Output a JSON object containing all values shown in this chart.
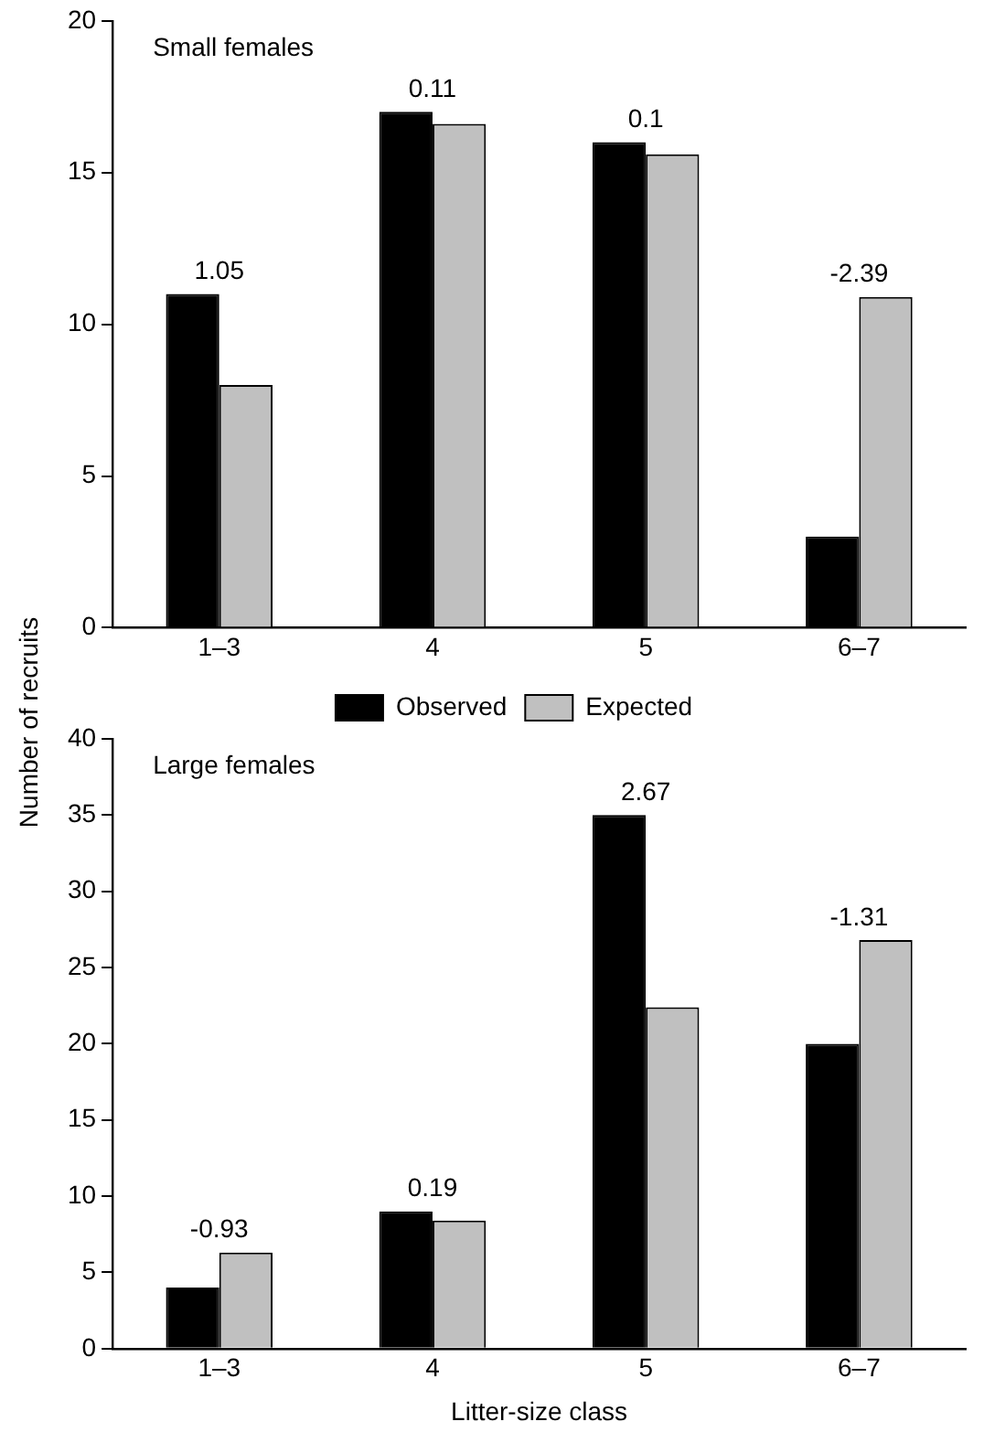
{
  "chart_data": [
    {
      "type": "bar",
      "title": "Small females",
      "ylabel": "Number of recruits",
      "categories": [
        "1–3",
        "4",
        "5",
        "6–7"
      ],
      "series": [
        {
          "color": "#000000",
          "values": [
            11,
            17,
            16,
            3
          ]
        },
        {
          "color": "#c0c0c0",
          "values": [
            8,
            16.6,
            15.6,
            10.9
          ]
        }
      ],
      "ylim": [
        0,
        20
      ],
      "yticks": [
        0,
        5,
        10,
        15,
        20
      ],
      "grid": false,
      "legend": false,
      "annotations": [
        "1.05",
        "0.11",
        "0.1",
        "-2.39"
      ]
    },
    {
      "type": "bar",
      "title": "Large females",
      "xlabel": "Litter-size class",
      "categories": [
        "1–3",
        "4",
        "5",
        "6–7"
      ],
      "series": [
        {
          "name": "Observed",
          "color": "#000000",
          "values": [
            4,
            9,
            35,
            20
          ]
        },
        {
          "name": "Expected",
          "color": "#c0c0c0",
          "values": [
            6.3,
            8.4,
            22.4,
            26.8
          ]
        }
      ],
      "ylim": [
        0,
        40
      ],
      "yticks": [
        0,
        5,
        10,
        15,
        20,
        25,
        30,
        35,
        40
      ],
      "grid": false,
      "legend": "top",
      "annotations": [
        "-0.93",
        "0.19",
        "2.67",
        "-1.31"
      ]
    }
  ]
}
